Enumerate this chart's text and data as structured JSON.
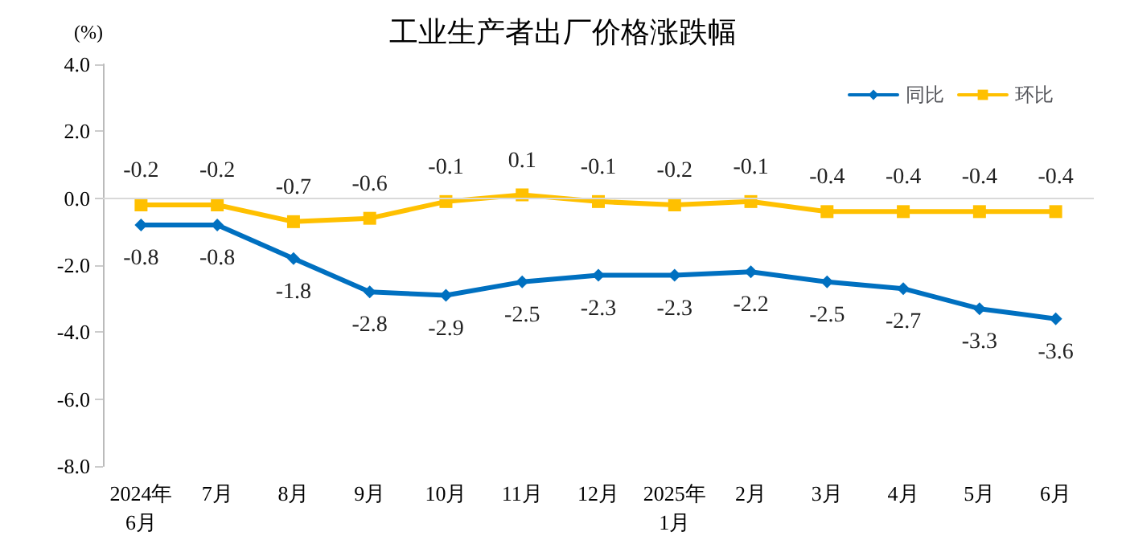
{
  "chart_data": {
    "type": "line",
    "title": "工业生产者出厂价格涨跌幅",
    "ylabel": "(%)",
    "categories": [
      "2024年\n6月",
      "7月",
      "8月",
      "9月",
      "10月",
      "11月",
      "12月",
      "2025年\n1月",
      "2月",
      "3月",
      "4月",
      "5月",
      "6月"
    ],
    "series": [
      {
        "name": "同比",
        "color": "#0070c0",
        "marker": "diamond",
        "values": [
          -0.8,
          -0.8,
          -1.8,
          -2.8,
          -2.9,
          -2.5,
          -2.3,
          -2.3,
          -2.2,
          -2.5,
          -2.7,
          -3.3,
          -3.6
        ]
      },
      {
        "name": "环比",
        "color": "#ffc000",
        "marker": "square",
        "values": [
          -0.2,
          -0.2,
          -0.7,
          -0.6,
          -0.1,
          0.1,
          -0.1,
          -0.2,
          -0.1,
          -0.4,
          -0.4,
          -0.4,
          -0.4
        ]
      }
    ],
    "ylim": [
      -8,
      4
    ],
    "yticks": [
      {
        "value": -8,
        "label": "-8.0"
      },
      {
        "value": -6,
        "label": "-6.0"
      },
      {
        "value": -4,
        "label": "-4.0"
      },
      {
        "value": -2,
        "label": "-2.0"
      },
      {
        "value": 0,
        "label": "0.0"
      },
      {
        "value": 2,
        "label": "2.0"
      },
      {
        "value": 4,
        "label": "4.0"
      }
    ],
    "ref_lines": [
      {
        "axis": "y",
        "value": 0,
        "color": "#d9d9d9"
      }
    ],
    "grid": false,
    "legend": "top right",
    "data_labels": true,
    "line_style": "solid"
  }
}
